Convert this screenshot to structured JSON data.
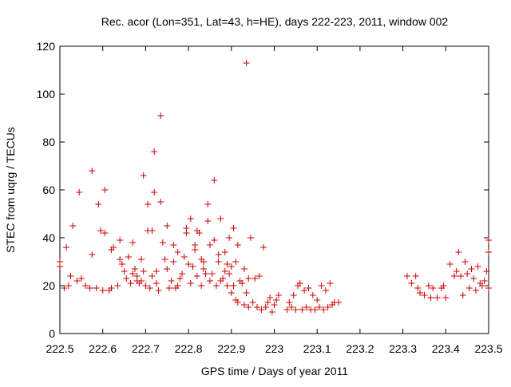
{
  "chart_data": {
    "type": "scatter",
    "title": "Rec. acor (Lon=351, Lat=43, h=HE), days 222-223, 2011, window 002",
    "xlabel": "GPS time / Days of year 2011",
    "ylabel": "STEC from uqrg / TECUs",
    "xlim": [
      222.5,
      223.5
    ],
    "ylim": [
      0,
      120
    ],
    "x_ticks": [
      222.5,
      222.6,
      222.7,
      222.8,
      222.9,
      223.0,
      223.1,
      223.2,
      223.3,
      223.4,
      223.5
    ],
    "x_tick_labels": [
      "222.5",
      "222.6",
      "222.7",
      "222.8",
      "222.9",
      "223",
      "223.1",
      "223.2",
      "223.3",
      "223.4",
      "223.5"
    ],
    "y_ticks": [
      0,
      20,
      40,
      60,
      80,
      100,
      120
    ],
    "y_tick_labels": [
      "0",
      "20",
      "40",
      "60",
      "80",
      "100",
      "120"
    ],
    "grid": false,
    "marker": "plus",
    "marker_color": "#cc0000",
    "series": [
      {
        "points": [
          [
            222.5,
            30
          ],
          [
            222.5,
            28
          ],
          [
            222.51,
            19
          ],
          [
            222.515,
            36
          ],
          [
            222.52,
            20
          ],
          [
            222.525,
            24
          ],
          [
            222.53,
            45
          ],
          [
            222.54,
            22
          ],
          [
            222.545,
            59
          ],
          [
            222.55,
            23
          ],
          [
            222.56,
            20
          ],
          [
            222.57,
            19
          ],
          [
            222.575,
            68
          ],
          [
            222.575,
            33
          ],
          [
            222.585,
            19
          ],
          [
            222.59,
            54
          ],
          [
            222.595,
            43
          ],
          [
            222.6,
            18
          ],
          [
            222.605,
            60
          ],
          [
            222.605,
            42
          ],
          [
            222.615,
            18
          ],
          [
            222.62,
            19
          ],
          [
            222.62,
            35
          ],
          [
            222.625,
            36
          ],
          [
            222.635,
            20
          ],
          [
            222.64,
            39
          ],
          [
            222.64,
            31
          ],
          [
            222.645,
            29
          ],
          [
            222.65,
            26
          ],
          [
            222.655,
            23
          ],
          [
            222.66,
            32
          ],
          [
            222.665,
            21
          ],
          [
            222.67,
            25
          ],
          [
            222.67,
            38
          ],
          [
            222.675,
            27
          ],
          [
            222.68,
            22
          ],
          [
            222.68,
            24
          ],
          [
            222.685,
            21
          ],
          [
            222.69,
            22
          ],
          [
            222.69,
            31
          ],
          [
            222.695,
            66
          ],
          [
            222.695,
            26
          ],
          [
            222.7,
            20
          ],
          [
            222.705,
            43
          ],
          [
            222.705,
            54
          ],
          [
            222.71,
            19
          ],
          [
            222.715,
            43
          ],
          [
            222.715,
            24
          ],
          [
            222.72,
            76
          ],
          [
            222.72,
            59
          ],
          [
            222.725,
            21
          ],
          [
            222.725,
            26
          ],
          [
            222.73,
            18
          ],
          [
            222.735,
            91
          ],
          [
            222.735,
            55
          ],
          [
            222.74,
            38
          ],
          [
            222.745,
            31
          ],
          [
            222.75,
            45
          ],
          [
            222.75,
            27
          ],
          [
            222.755,
            19
          ],
          [
            222.76,
            22
          ],
          [
            222.765,
            37
          ],
          [
            222.765,
            30
          ],
          [
            222.77,
            19
          ],
          [
            222.775,
            20
          ],
          [
            222.775,
            34
          ],
          [
            222.78,
            23
          ],
          [
            222.785,
            25
          ],
          [
            222.79,
            32
          ],
          [
            222.795,
            42
          ],
          [
            222.795,
            44
          ],
          [
            222.8,
            29
          ],
          [
            222.805,
            21
          ],
          [
            222.805,
            48
          ],
          [
            222.81,
            28
          ],
          [
            222.815,
            35
          ],
          [
            222.815,
            37
          ],
          [
            222.82,
            24
          ],
          [
            222.82,
            43
          ],
          [
            222.825,
            42
          ],
          [
            222.83,
            20
          ],
          [
            222.83,
            31
          ],
          [
            222.835,
            27
          ],
          [
            222.835,
            30
          ],
          [
            222.84,
            25
          ],
          [
            222.845,
            54
          ],
          [
            222.845,
            47
          ],
          [
            222.85,
            22
          ],
          [
            222.85,
            37
          ],
          [
            222.855,
            25
          ],
          [
            222.86,
            64
          ],
          [
            222.86,
            39
          ],
          [
            222.865,
            20
          ],
          [
            222.87,
            33
          ],
          [
            222.87,
            30
          ],
          [
            222.875,
            48
          ],
          [
            222.875,
            22
          ],
          [
            222.88,
            23
          ],
          [
            222.885,
            26
          ],
          [
            222.885,
            34
          ],
          [
            222.89,
            20
          ],
          [
            222.89,
            29
          ],
          [
            222.895,
            40
          ],
          [
            222.895,
            25
          ],
          [
            222.9,
            17
          ],
          [
            222.9,
            28
          ],
          [
            222.905,
            44
          ],
          [
            222.905,
            20
          ],
          [
            222.91,
            14
          ],
          [
            222.91,
            30
          ],
          [
            222.915,
            13
          ],
          [
            222.915,
            37
          ],
          [
            222.92,
            22
          ],
          [
            222.925,
            21
          ],
          [
            222.93,
            12
          ],
          [
            222.93,
            27
          ],
          [
            222.935,
            113
          ],
          [
            222.935,
            17
          ],
          [
            222.94,
            11
          ],
          [
            222.94,
            23
          ],
          [
            222.945,
            40
          ],
          [
            222.95,
            13
          ],
          [
            222.955,
            23
          ],
          [
            222.96,
            11
          ],
          [
            222.965,
            24
          ],
          [
            222.97,
            10
          ],
          [
            222.975,
            36
          ],
          [
            222.98,
            11
          ],
          [
            222.985,
            13
          ],
          [
            222.99,
            15
          ],
          [
            222.995,
            9
          ],
          [
            223.0,
            12
          ],
          [
            223.005,
            14
          ],
          [
            223.01,
            16
          ],
          [
            223.03,
            10
          ],
          [
            223.035,
            13
          ],
          [
            223.04,
            11
          ],
          [
            223.045,
            16
          ],
          [
            223.05,
            10
          ],
          [
            223.055,
            20
          ],
          [
            223.06,
            21
          ],
          [
            223.065,
            10
          ],
          [
            223.07,
            18
          ],
          [
            223.075,
            11
          ],
          [
            223.08,
            19
          ],
          [
            223.085,
            10
          ],
          [
            223.09,
            16
          ],
          [
            223.095,
            10
          ],
          [
            223.1,
            14
          ],
          [
            223.105,
            11
          ],
          [
            223.11,
            20
          ],
          [
            223.115,
            10
          ],
          [
            223.12,
            18
          ],
          [
            223.125,
            11
          ],
          [
            223.13,
            21
          ],
          [
            223.135,
            12
          ],
          [
            223.14,
            13
          ],
          [
            223.15,
            13
          ],
          [
            223.31,
            24
          ],
          [
            223.32,
            21
          ],
          [
            223.33,
            24
          ],
          [
            223.335,
            19
          ],
          [
            223.34,
            17
          ],
          [
            223.35,
            16
          ],
          [
            223.36,
            20
          ],
          [
            223.365,
            15
          ],
          [
            223.37,
            19
          ],
          [
            223.38,
            15
          ],
          [
            223.39,
            19
          ],
          [
            223.395,
            20
          ],
          [
            223.4,
            15
          ],
          [
            223.41,
            29
          ],
          [
            223.42,
            24
          ],
          [
            223.425,
            26
          ],
          [
            223.43,
            34
          ],
          [
            223.435,
            24
          ],
          [
            223.44,
            16
          ],
          [
            223.445,
            30
          ],
          [
            223.45,
            25
          ],
          [
            223.455,
            19
          ],
          [
            223.46,
            27
          ],
          [
            223.465,
            23
          ],
          [
            223.47,
            18
          ],
          [
            223.475,
            28
          ],
          [
            223.48,
            21
          ],
          [
            223.485,
            20
          ],
          [
            223.49,
            22
          ],
          [
            223.495,
            26
          ],
          [
            223.5,
            19
          ],
          [
            223.5,
            34
          ],
          [
            223.5,
            39
          ]
        ]
      }
    ]
  }
}
